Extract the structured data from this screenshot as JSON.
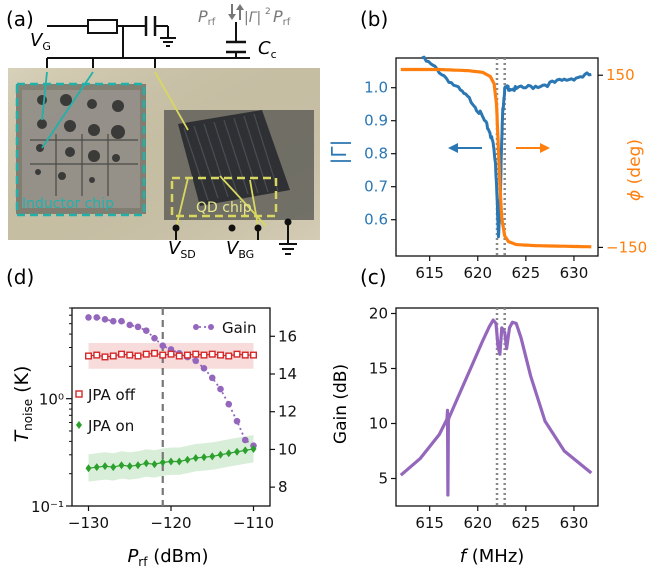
{
  "colors": {
    "blue": "#2a77b4",
    "orange": "#ff7f0e",
    "purple": "#9467bd",
    "red": "#d62728",
    "green": "#2ca02c",
    "teal": "#20b2aa",
    "yellow": "#d8d860",
    "gray": "#777777",
    "dotted": "#888888"
  },
  "panel_a": {
    "label": "(a)",
    "vg": "V",
    "vg_sub": "G",
    "prf_left": "P",
    "prf_left_sub": "rf",
    "gamma_prf": "|Γ|",
    "gamma_sup": "2",
    "prf_right": "P",
    "prf_right_sub": "rf",
    "cc": "C",
    "cc_sub": "c",
    "inductor_chip": "Inductor chip",
    "qd_chip": "QD chip",
    "vsd": "V",
    "vsd_sub": "SD",
    "vbg": "V",
    "vbg_sub": "BG"
  },
  "chart_data": [
    {
      "panel": "(b)",
      "type": "line",
      "xlabel": "",
      "ylabel_left": "|Γ|",
      "ylabel_right": "ϕ (deg)",
      "xlim": [
        611.5,
        632.5
      ],
      "ylim_left": [
        0.49,
        1.09
      ],
      "ylim_right": [
        -165,
        180
      ],
      "x_ticks": [
        "615",
        "620",
        "625",
        "630"
      ],
      "y_ticks_left": [
        "0.6",
        "0.7",
        "0.8",
        "0.9",
        "1.0"
      ],
      "y_ticks_right": [
        "−150",
        "150"
      ],
      "vlines": [
        622.0,
        622.8
      ],
      "series": [
        {
          "axis": "left",
          "color": "#2a77b4",
          "x": [
            614.2,
            616,
            618,
            619.5,
            620.5,
            621.2,
            621.6,
            621.85,
            622.0,
            622.15,
            622.3,
            622.45,
            622.6,
            622.8,
            623.2,
            624,
            626,
            628,
            630,
            631.8
          ],
          "y": [
            1.09,
            1.05,
            0.995,
            0.955,
            0.91,
            0.87,
            0.83,
            0.77,
            0.67,
            0.555,
            0.62,
            0.8,
            0.93,
            0.995,
            1.0,
            0.995,
            1.005,
            1.015,
            1.03,
            1.04
          ]
        },
        {
          "axis": "right",
          "color": "#ff7f0e",
          "x": [
            612,
            616,
            619,
            620.5,
            621.3,
            621.7,
            621.95,
            622.1,
            622.3,
            622.5,
            622.8,
            623.2,
            624,
            626,
            629,
            631.8
          ],
          "y": [
            160,
            160,
            158,
            155,
            148,
            135,
            100,
            40,
            -40,
            -100,
            -130,
            -140,
            -145,
            -147,
            -148,
            -149
          ]
        }
      ],
      "arrows": [
        "left",
        "right"
      ]
    },
    {
      "panel": "(c)",
      "type": "line",
      "xlabel": "f (MHz)",
      "ylabel": "Gain (dB)",
      "xlim": [
        611.5,
        632.5
      ],
      "ylim": [
        2.5,
        20.5
      ],
      "x_ticks": [
        "615",
        "620",
        "625",
        "630"
      ],
      "y_ticks": [
        "5",
        "10",
        "15",
        "20"
      ],
      "vlines": [
        622.0,
        622.8
      ],
      "series": [
        {
          "name": "",
          "color": "#9467bd",
          "x": [
            612,
            614,
            616,
            616.8,
            616.85,
            616.9,
            616.95,
            617.0,
            618,
            619.5,
            620.5,
            621.2,
            621.6,
            621.9,
            622.1,
            622.3,
            622.5,
            622.8,
            623.0,
            623.3,
            623.6,
            624.0,
            624.5,
            625.5,
            627,
            629,
            631.8
          ],
          "y": [
            5.3,
            6.8,
            9.0,
            10.4,
            11.2,
            3.5,
            10.3,
            10.5,
            12.5,
            15.5,
            17.5,
            18.8,
            19.4,
            19.1,
            17.0,
            16.3,
            18.7,
            18.3,
            16.8,
            18.7,
            19.2,
            19.1,
            17.8,
            14.3,
            10.2,
            7.5,
            5.5
          ]
        }
      ]
    },
    {
      "panel": "(d)",
      "type": "scatter",
      "xlabel": "Prf (dBm)",
      "ylabel_left": "Tnoise (K)",
      "ylabel_right": "",
      "xlim": [
        -132,
        -108
      ],
      "ylim_left_log": [
        0.1,
        7.0
      ],
      "ylim_right": [
        7,
        17.5
      ],
      "x_ticks": [
        "−130",
        "−120",
        "−110"
      ],
      "y_ticks_left": [
        "10⁰",
        "10⁻¹"
      ],
      "y_ticks_right": [
        "8",
        "10",
        "12",
        "14",
        "16"
      ],
      "vline": -121,
      "series": [
        {
          "name": "JPA off",
          "axis": "left",
          "color": "#d62728",
          "marker": "square-open",
          "x": [
            -130,
            -129,
            -128,
            -127,
            -126,
            -125,
            -124,
            -123,
            -122,
            -121,
            -120,
            -119,
            -118,
            -117,
            -116,
            -115,
            -114,
            -113,
            -112,
            -111,
            -110
          ],
          "y": [
            2.5,
            2.55,
            2.45,
            2.5,
            2.6,
            2.55,
            2.5,
            2.6,
            2.65,
            2.55,
            2.6,
            2.5,
            2.55,
            2.6,
            2.55,
            2.6,
            2.55,
            2.5,
            2.6,
            2.55,
            2.55
          ],
          "band_low": 1.9,
          "band_high": 3.3
        },
        {
          "name": "JPA on",
          "axis": "left",
          "color": "#2ca02c",
          "marker": "diamond",
          "x": [
            -130,
            -129,
            -128,
            -127,
            -126,
            -125,
            -124,
            -123,
            -122,
            -121,
            -120,
            -119,
            -118,
            -117,
            -116,
            -115,
            -114,
            -113,
            -112,
            -111,
            -110
          ],
          "y": [
            0.225,
            0.23,
            0.235,
            0.23,
            0.24,
            0.235,
            0.24,
            0.25,
            0.245,
            0.255,
            0.26,
            0.26,
            0.27,
            0.28,
            0.285,
            0.29,
            0.3,
            0.31,
            0.32,
            0.33,
            0.34
          ],
          "band_low_ratio": 0.75,
          "band_high_ratio": 1.35
        },
        {
          "name": "Gain",
          "axis": "right",
          "color": "#9467bd",
          "marker": "dot-line",
          "x": [
            -130,
            -129,
            -128,
            -127,
            -126,
            -125,
            -124,
            -123,
            -122,
            -121,
            -120,
            -119,
            -118,
            -117,
            -116,
            -115,
            -114,
            -113,
            -112,
            -111,
            -110
          ],
          "y": [
            17.0,
            17.0,
            16.9,
            16.8,
            16.8,
            16.6,
            16.5,
            16.3,
            15.9,
            15.5,
            15.3,
            15.1,
            14.9,
            14.7,
            14.3,
            13.8,
            13.2,
            12.4,
            11.5,
            10.5,
            10.2
          ]
        }
      ]
    }
  ],
  "labels": {
    "b": "(b)",
    "c": "(c)",
    "d": "(d)",
    "phi_symbol": "ϕ",
    "phi_unit": " (deg)",
    "gamma": "|Γ|",
    "gain_axis": "Gain (dB)",
    "f_symbol": "f",
    "f_unit": " (MHz)",
    "prf_symbol": "P",
    "prf_sub": "rf",
    "prf_unit": " (dBm)",
    "tn_symbol": "T",
    "tn_sub": "noise",
    "tn_unit": " (K)",
    "legend_gain": "Gain",
    "legend_off": "JPA off",
    "legend_on": "JPA on"
  }
}
